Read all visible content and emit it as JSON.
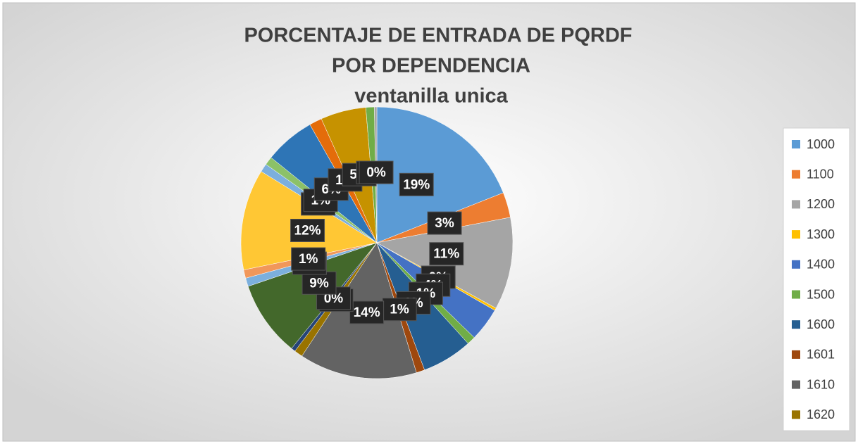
{
  "chart_data": {
    "type": "pie",
    "title": [
      "PORCENTAJE DE ENTRADA DE PQRDF",
      "POR DEPENDENCIA",
      "ventanilla unica"
    ],
    "categories": [
      "1000",
      "1100",
      "1200",
      "1300",
      "1400",
      "1500",
      "1600",
      "1601",
      "1610",
      "1620",
      null,
      null,
      null,
      null,
      null,
      null,
      null,
      null,
      null,
      null,
      null,
      null
    ],
    "values": [
      19,
      3,
      11,
      0.3,
      4,
      1,
      6,
      1,
      14,
      1,
      0.5,
      9,
      1,
      1,
      12,
      1,
      1,
      6,
      1.5,
      5.4,
      1,
      0.3
    ],
    "value_labels": [
      "19%",
      "3%",
      "11%",
      "0%",
      "4%",
      "1%",
      "6%",
      "1%",
      "14%",
      "1%",
      "0%",
      "9%",
      "1%",
      "1%",
      "12%",
      "1%",
      "1%",
      "6%",
      "1%",
      "5%",
      "1%",
      "0%"
    ],
    "colors": [
      "#5b9bd5",
      "#ed7d31",
      "#a5a5a5",
      "#ffc000",
      "#4472c4",
      "#70ad47",
      "#255e91",
      "#9e480e",
      "#636363",
      "#997300",
      "#264478",
      "#43682b",
      "#7cafdd",
      "#f1975a",
      "#ffc734",
      "#7cafdd",
      "#8cc168",
      "#2e75b6",
      "#e46c0a",
      "#c69200",
      "#70ad47",
      "#a5a5a5"
    ],
    "legend": "right"
  }
}
